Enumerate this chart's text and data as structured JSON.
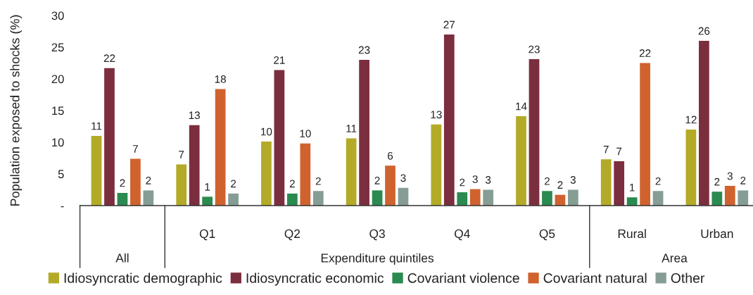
{
  "chart_data": {
    "type": "bar",
    "ylabel": "Population exposed to shocks (%)",
    "categories": [
      null,
      "Q1",
      "Q2",
      "Q3",
      "Q4",
      "Q5",
      "Rural",
      "Urban"
    ],
    "annotations": [
      "All",
      "Expenditure quintiles",
      "Area"
    ],
    "series": [
      {
        "name": "Idiosyncratic demographic",
        "color": "#b3aa28",
        "values": [
          11.0,
          6.5,
          10.1,
          10.6,
          12.8,
          14.1,
          7.3,
          12.0
        ],
        "value_labels": [
          "11",
          "7",
          "10",
          "11",
          "13",
          "14",
          "7",
          "12"
        ]
      },
      {
        "name": "Idiosyncratic economic",
        "color": "#7b2e3e",
        "values": [
          21.7,
          12.7,
          21.4,
          23.0,
          27.0,
          23.1,
          7.0,
          26.0
        ],
        "value_labels": [
          "22",
          "13",
          "21",
          "23",
          "27",
          "23",
          "7",
          "26"
        ]
      },
      {
        "name": "Covariant violence",
        "color": "#2a8a4f",
        "values": [
          2.0,
          1.4,
          1.9,
          2.4,
          2.1,
          2.3,
          1.3,
          2.2
        ],
        "value_labels": [
          "2",
          "1",
          "2",
          "2",
          "2",
          "2",
          "1",
          "2"
        ]
      },
      {
        "name": "Covariant natural",
        "color": "#d0622e",
        "values": [
          7.4,
          18.4,
          9.8,
          6.3,
          2.6,
          1.7,
          22.5,
          3.1
        ],
        "value_labels": [
          "7",
          "18",
          "10",
          "6",
          "3",
          "2",
          "22",
          "3"
        ]
      },
      {
        "name": "Other",
        "color": "#869d94",
        "values": [
          2.4,
          1.9,
          2.3,
          2.8,
          2.5,
          2.5,
          2.3,
          2.4
        ],
        "value_labels": [
          "2",
          "2",
          "2",
          "3",
          "3",
          "3",
          "2",
          "2"
        ]
      }
    ],
    "ylim": [
      0,
      30
    ],
    "yticks": [
      {
        "value": 0,
        "label": "-"
      },
      5,
      10,
      15,
      20,
      25,
      30
    ],
    "legend": "bottom"
  }
}
